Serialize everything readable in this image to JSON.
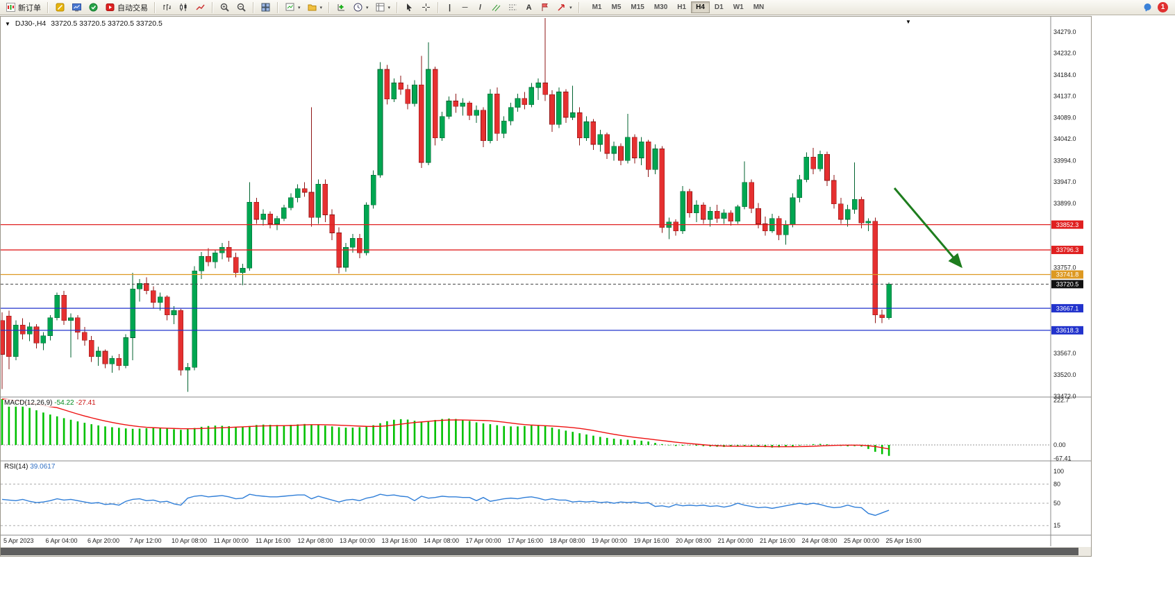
{
  "toolbar": {
    "new_order_label": "新订单",
    "auto_trading_label": "自动交易",
    "timeframes": [
      "M1",
      "M5",
      "M15",
      "M30",
      "H1",
      "H4",
      "D1",
      "W1",
      "MN"
    ],
    "active_timeframe": "H4",
    "notification_count": "1"
  },
  "chart": {
    "symbol_period": "DJ30-,H4",
    "ohlc_text": "33720.5 33720.5 33720.5 33720.5"
  },
  "chart_data": {
    "type": "candlestick",
    "symbol": "DJ30-",
    "timeframe": "H4",
    "up_color": "#00a651",
    "down_color": "#e53030",
    "up_edge": "#00632f",
    "down_edge": "#8e1414",
    "y_axis": {
      "plain_labels": [
        34279.0,
        34232.0,
        34184.0,
        34137.0,
        34089.0,
        34042.0,
        33994.0,
        33947.0,
        33899.0,
        33757.0,
        33567.0,
        33520.0,
        33472.0
      ],
      "ylim": [
        33472.0,
        34310.0
      ]
    },
    "price_lines": [
      {
        "price": 33852.3,
        "label": "33852.3",
        "color": "#e02020",
        "style": "solid",
        "name": "resistance-upper"
      },
      {
        "price": 33796.3,
        "label": "33796.3",
        "color": "#e02020",
        "style": "solid",
        "name": "resistance-lower"
      },
      {
        "price": 33741.8,
        "label": "33741.8",
        "color": "#dd9922",
        "style": "solid",
        "name": "pivot-orange"
      },
      {
        "price": 33720.5,
        "label": "33720.5",
        "color": "#444444",
        "style": "dashed",
        "name": "current-bid",
        "badge": "#111111"
      },
      {
        "price": 33667.1,
        "label": "33667.1",
        "color": "#2233cc",
        "style": "solid",
        "name": "support-upper"
      },
      {
        "price": 33618.3,
        "label": "33618.3",
        "color": "#2233cc",
        "style": "solid",
        "name": "support-lower"
      }
    ],
    "annotation_arrow": {
      "from": [
        1287,
        247
      ],
      "to": [
        1383,
        360
      ],
      "color": "#1e7d1e"
    },
    "x_labels": [
      "5 Apr 2023",
      "6 Apr 04:00",
      "6 Apr 20:00",
      "7 Apr 12:00",
      "10 Apr 08:00",
      "11 Apr 00:00",
      "11 Apr 16:00",
      "12 Apr 08:00",
      "13 Apr 00:00",
      "13 Apr 16:00",
      "14 Apr 08:00",
      "17 Apr 00:00",
      "17 Apr 16:00",
      "18 Apr 08:00",
      "19 Apr 00:00",
      "19 Apr 16:00",
      "20 Apr 08:00",
      "21 Apr 00:00",
      "21 Apr 16:00",
      "24 Apr 08:00",
      "25 Apr 00:00",
      "25 Apr 16:00"
    ],
    "ohlc": [
      [
        33640,
        33658,
        33488,
        33565
      ],
      [
        33650,
        33662,
        33532,
        33560
      ],
      [
        33560,
        33640,
        33552,
        33630
      ],
      [
        33630,
        33645,
        33598,
        33610
      ],
      [
        33610,
        33636,
        33594,
        33626
      ],
      [
        33626,
        33632,
        33578,
        33590
      ],
      [
        33590,
        33614,
        33574,
        33606
      ],
      [
        33606,
        33652,
        33596,
        33646
      ],
      [
        33646,
        33702,
        33640,
        33696
      ],
      [
        33696,
        33706,
        33630,
        33640
      ],
      [
        33640,
        33656,
        33558,
        33646
      ],
      [
        33646,
        33652,
        33598,
        33614
      ],
      [
        33614,
        33626,
        33584,
        33596
      ],
      [
        33596,
        33606,
        33548,
        33560
      ],
      [
        33560,
        33582,
        33540,
        33572
      ],
      [
        33572,
        33576,
        33534,
        33544
      ],
      [
        33544,
        33562,
        33524,
        33556
      ],
      [
        33556,
        33566,
        33530,
        33540
      ],
      [
        33540,
        33610,
        33534,
        33602
      ],
      [
        33602,
        33746,
        33552,
        33710
      ],
      [
        33710,
        33732,
        33682,
        33722
      ],
      [
        33722,
        33736,
        33698,
        33706
      ],
      [
        33706,
        33716,
        33668,
        33680
      ],
      [
        33680,
        33702,
        33662,
        33692
      ],
      [
        33692,
        33696,
        33640,
        33652
      ],
      [
        33652,
        33672,
        33632,
        33662
      ],
      [
        33662,
        33666,
        33518,
        33530
      ],
      [
        33530,
        33546,
        33482,
        33536
      ],
      [
        33536,
        33760,
        33530,
        33750
      ],
      [
        33750,
        33792,
        33732,
        33782
      ],
      [
        33782,
        33800,
        33760,
        33770
      ],
      [
        33770,
        33796,
        33756,
        33790
      ],
      [
        33790,
        33812,
        33776,
        33802
      ],
      [
        33802,
        33816,
        33770,
        33780
      ],
      [
        33780,
        33790,
        33736,
        33746
      ],
      [
        33746,
        33766,
        33718,
        33756
      ],
      [
        33756,
        33946,
        33750,
        33902
      ],
      [
        33902,
        33912,
        33854,
        33864
      ],
      [
        33864,
        33886,
        33850,
        33876
      ],
      [
        33876,
        33882,
        33844,
        33854
      ],
      [
        33854,
        33872,
        33840,
        33866
      ],
      [
        33866,
        33896,
        33860,
        33890
      ],
      [
        33890,
        33922,
        33884,
        33912
      ],
      [
        33912,
        33942,
        33902,
        33932
      ],
      [
        33932,
        33946,
        33914,
        33924
      ],
      [
        33924,
        34112,
        33848,
        33868
      ],
      [
        33868,
        33952,
        33854,
        33942
      ],
      [
        33942,
        33952,
        33858,
        33874
      ],
      [
        33874,
        33886,
        33818,
        33834
      ],
      [
        33834,
        33846,
        33744,
        33758
      ],
      [
        33758,
        33812,
        33748,
        33802
      ],
      [
        33802,
        33832,
        33790,
        33822
      ],
      [
        33822,
        33832,
        33778,
        33790
      ],
      [
        33790,
        33902,
        33784,
        33896
      ],
      [
        33896,
        33972,
        33888,
        33962
      ],
      [
        33962,
        34212,
        33956,
        34196
      ],
      [
        34196,
        34206,
        34118,
        34130
      ],
      [
        34130,
        34176,
        34124,
        34166
      ],
      [
        34166,
        34182,
        34140,
        34152
      ],
      [
        34152,
        34162,
        34108,
        34120
      ],
      [
        34120,
        34172,
        34114,
        34162
      ],
      [
        34162,
        34226,
        33978,
        33990
      ],
      [
        33990,
        34256,
        33984,
        34196
      ],
      [
        34196,
        34202,
        34028,
        34044
      ],
      [
        34044,
        34102,
        34038,
        34092
      ],
      [
        34092,
        34136,
        34086,
        34126
      ],
      [
        34126,
        34142,
        34100,
        34114
      ],
      [
        34114,
        34132,
        34094,
        34122
      ],
      [
        34122,
        34126,
        34084,
        34094
      ],
      [
        34094,
        34116,
        34078,
        34106
      ],
      [
        34106,
        34112,
        34024,
        34038
      ],
      [
        34038,
        34152,
        34032,
        34142
      ],
      [
        34142,
        34156,
        34038,
        34054
      ],
      [
        34054,
        34092,
        34044,
        34082
      ],
      [
        34082,
        34122,
        34072,
        34112
      ],
      [
        34112,
        34142,
        34102,
        34132
      ],
      [
        34132,
        34146,
        34108,
        34118
      ],
      [
        34118,
        34166,
        34112,
        34156
      ],
      [
        34156,
        34176,
        34128,
        34166
      ],
      [
        34166,
        34310,
        34126,
        34140
      ],
      [
        34140,
        34150,
        34058,
        34074
      ],
      [
        34074,
        34156,
        34066,
        34146
      ],
      [
        34146,
        34152,
        34078,
        34090
      ],
      [
        34090,
        34160,
        34084,
        34100
      ],
      [
        34100,
        34112,
        34028,
        34044
      ],
      [
        34044,
        34092,
        34038,
        34080
      ],
      [
        34080,
        34086,
        34018,
        34030
      ],
      [
        34030,
        34062,
        34014,
        34052
      ],
      [
        34052,
        34056,
        33998,
        34010
      ],
      [
        34010,
        34036,
        33994,
        34026
      ],
      [
        34026,
        34032,
        33984,
        33994
      ],
      [
        33994,
        34098,
        33988,
        34046
      ],
      [
        34046,
        34052,
        33988,
        34000
      ],
      [
        34000,
        34046,
        33984,
        34036
      ],
      [
        34036,
        34040,
        33958,
        33974
      ],
      [
        33974,
        34030,
        33964,
        34020
      ],
      [
        34020,
        34026,
        33834,
        33846
      ],
      [
        33846,
        33868,
        33820,
        33858
      ],
      [
        33858,
        33864,
        33828,
        33838
      ],
      [
        33838,
        33938,
        33832,
        33926
      ],
      [
        33926,
        33932,
        33868,
        33878
      ],
      [
        33878,
        33906,
        33858,
        33896
      ],
      [
        33896,
        33902,
        33854,
        33864
      ],
      [
        33864,
        33892,
        33848,
        33882
      ],
      [
        33882,
        33896,
        33856,
        33866
      ],
      [
        33866,
        33886,
        33854,
        33878
      ],
      [
        33878,
        33884,
        33850,
        33860
      ],
      [
        33860,
        33896,
        33854,
        33892
      ],
      [
        33892,
        33992,
        33886,
        33946
      ],
      [
        33946,
        33952,
        33878,
        33888
      ],
      [
        33888,
        33900,
        33844,
        33854
      ],
      [
        33854,
        33870,
        33828,
        33838
      ],
      [
        33838,
        33876,
        33834,
        33866
      ],
      [
        33866,
        33872,
        33818,
        33830
      ],
      [
        33830,
        33862,
        33808,
        33852
      ],
      [
        33852,
        33922,
        33846,
        33912
      ],
      [
        33912,
        33962,
        33902,
        33952
      ],
      [
        33952,
        34012,
        33946,
        34002
      ],
      [
        34002,
        34022,
        33964,
        33976
      ],
      [
        33976,
        34016,
        33970,
        34008
      ],
      [
        34008,
        34014,
        33938,
        33950
      ],
      [
        33950,
        33962,
        33888,
        33898
      ],
      [
        33898,
        33912,
        33854,
        33864
      ],
      [
        33864,
        33896,
        33848,
        33886
      ],
      [
        33886,
        33990,
        33876,
        33908
      ],
      [
        33908,
        33914,
        33844,
        33856
      ],
      [
        33856,
        33866,
        33838,
        33860
      ],
      [
        33860,
        33868,
        33634,
        33652
      ],
      [
        33652,
        33664,
        33634,
        33646
      ],
      [
        33646,
        33724,
        33642,
        33720.5
      ]
    ],
    "macd": {
      "label": "MACD(12,26,9)",
      "value": "-54.22",
      "signal_value": "-27.41",
      "axis_ticks": [
        [
          222.7,
          "222.7"
        ],
        [
          0,
          "0.00"
        ],
        [
          -67.41,
          "-67.41"
        ]
      ],
      "histogram_color": "#00c000",
      "signal_color": "#ee1111",
      "histogram": [
        228,
        222,
        210,
        196,
        184,
        172,
        161,
        151,
        142,
        133,
        125,
        117,
        110,
        103,
        97,
        92,
        88,
        85,
        82,
        80,
        81,
        83,
        84,
        83,
        81,
        78,
        75,
        78,
        84,
        90,
        94,
        96,
        95,
        93,
        90,
        88,
        94,
        99,
        101,
        100,
        99,
        98,
        100,
        102,
        104,
        102,
        100,
        96,
        92,
        88,
        86,
        86,
        88,
        92,
        98,
        108,
        118,
        125,
        128,
        126,
        120,
        113,
        118,
        124,
        129,
        131,
        129,
        125,
        119,
        112,
        107,
        103,
        98,
        94,
        92,
        92,
        94,
        96,
        98,
        93,
        86,
        78,
        71,
        65,
        58,
        52,
        46,
        40,
        35,
        31,
        28,
        26,
        24,
        21,
        17,
        10,
        4,
        -2,
        -5,
        -4,
        -2,
        -4,
        -6,
        -8,
        -9,
        -10,
        -9,
        -7,
        -4,
        -6,
        -9,
        -11,
        -13,
        -12,
        -10,
        -7,
        -3,
        1,
        4,
        5,
        3,
        -1,
        -5,
        -7,
        -6,
        -8,
        -20,
        -34,
        -46,
        -54.22
      ]
    },
    "rsi": {
      "label": "RSI(14)",
      "value": "39.0617",
      "axis_ticks": [
        [
          100,
          "100"
        ],
        [
          80,
          "80"
        ],
        [
          50,
          "50"
        ],
        [
          15,
          "15"
        ]
      ],
      "levels": [
        80,
        50,
        15
      ],
      "line_color": "#2f7ed8",
      "values": [
        56,
        55,
        54,
        56,
        53,
        51,
        52,
        54,
        57,
        55,
        56,
        54,
        52,
        50,
        51,
        48,
        49,
        47,
        53,
        56,
        57,
        54,
        55,
        52,
        53,
        49,
        47,
        58,
        61,
        62,
        60,
        61,
        62,
        60,
        57,
        58,
        64,
        62,
        61,
        60,
        60,
        61,
        62,
        63,
        63,
        57,
        61,
        58,
        55,
        52,
        55,
        56,
        54,
        58,
        60,
        64,
        62,
        63,
        61,
        60,
        54,
        61,
        58,
        59,
        61,
        60,
        60,
        59,
        59,
        54,
        59,
        53,
        55,
        57,
        58,
        57,
        59,
        60,
        58,
        55,
        57,
        55,
        55,
        52,
        53,
        52,
        53,
        51,
        52,
        50,
        52,
        51,
        52,
        50,
        51,
        45,
        46,
        44,
        48,
        46,
        47,
        46,
        47,
        45,
        46,
        44,
        46,
        50,
        47,
        45,
        43,
        44,
        42,
        44,
        46,
        48,
        50,
        48,
        50,
        48,
        45,
        43,
        44,
        47,
        44,
        43,
        34,
        31,
        35,
        39.06
      ]
    }
  }
}
